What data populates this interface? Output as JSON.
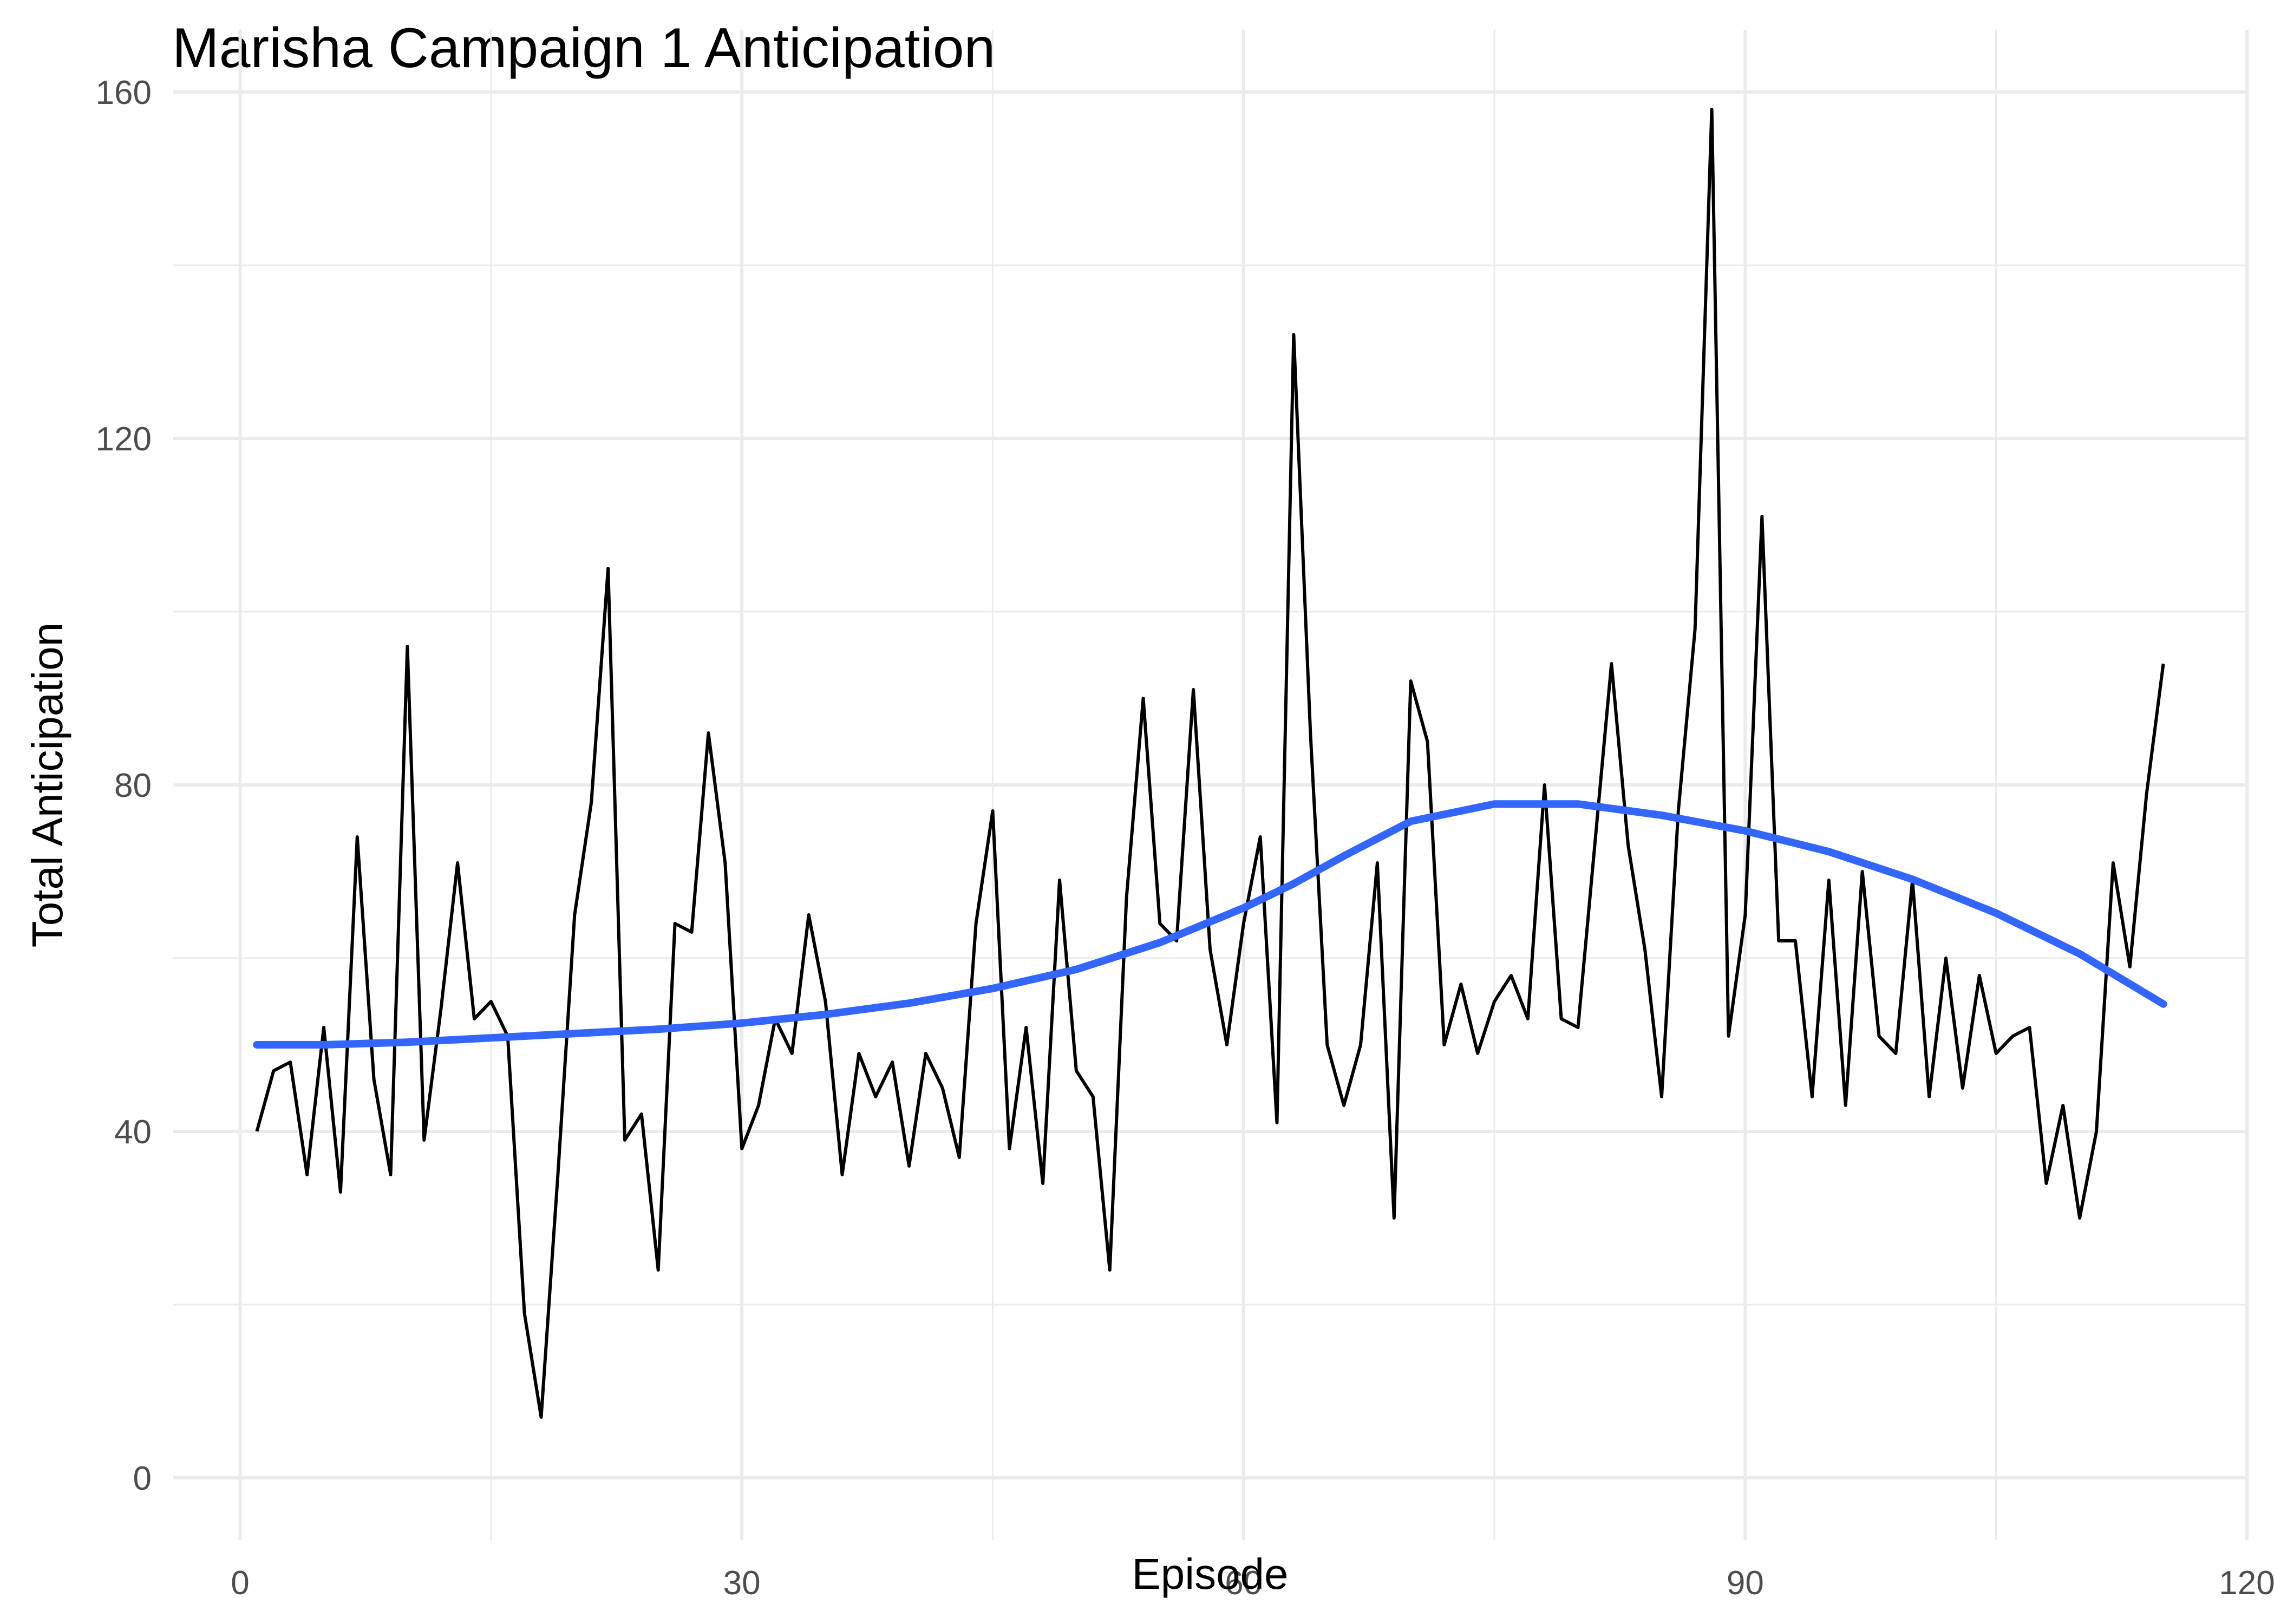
{
  "chart_data": {
    "type": "line",
    "title": "Marisha Campaign 1 Anticipation",
    "xlabel": "Episode",
    "ylabel": "Total Anticipation",
    "xlim": [
      -4,
      120
    ],
    "ylim": [
      0,
      160
    ],
    "x_ticks": [
      0,
      30,
      60,
      90,
      120
    ],
    "y_ticks": [
      0,
      40,
      80,
      120,
      160
    ],
    "x_minor": [
      15,
      45,
      75,
      105
    ],
    "y_minor": [
      20,
      60,
      100,
      140
    ],
    "grid": true,
    "legend": "none",
    "colors": {
      "raw": "#000000",
      "smooth": "#3366FF",
      "grid": "#EBEBEB",
      "tick_text": "#4D4D4D"
    },
    "series": [
      {
        "x": [
          1,
          2,
          3,
          4,
          5,
          6,
          7,
          8,
          9,
          10,
          11,
          12,
          13,
          14,
          15,
          16,
          17,
          18,
          19,
          20,
          21,
          22,
          23,
          24,
          25,
          26,
          27,
          28,
          29,
          30,
          31,
          32,
          33,
          34,
          35,
          36,
          37,
          38,
          39,
          40,
          41,
          42,
          43,
          44,
          45,
          46,
          47,
          48,
          49,
          50,
          51,
          52,
          53,
          54,
          55,
          56,
          57,
          58,
          59,
          60,
          61,
          62,
          63,
          64,
          65,
          66,
          67,
          68,
          69,
          70,
          71,
          72,
          73,
          74,
          75,
          76,
          77,
          78,
          79,
          80,
          81,
          82,
          83,
          84,
          85,
          86,
          87,
          88,
          89,
          90,
          91,
          92,
          93,
          94,
          95,
          96,
          97,
          98,
          99,
          100,
          101,
          102,
          103,
          104,
          105,
          106,
          107,
          108,
          109,
          110,
          111,
          112,
          113,
          114,
          115
        ],
        "values": [
          40,
          47,
          48,
          35,
          52,
          33,
          74,
          46,
          35,
          96,
          39,
          54,
          71,
          53,
          55,
          51,
          19,
          7,
          35,
          65,
          78,
          105,
          39,
          42,
          24,
          64,
          63,
          86,
          71,
          38,
          43,
          53,
          49,
          65,
          55,
          35,
          49,
          44,
          48,
          36,
          49,
          45,
          37,
          64,
          77,
          38,
          52,
          34,
          69,
          47,
          44,
          24,
          67,
          90,
          64,
          62,
          91,
          61,
          50,
          64,
          74,
          41,
          132,
          86,
          50,
          43,
          50,
          71,
          30,
          92,
          85,
          50,
          57,
          49,
          55,
          58,
          53,
          80,
          53,
          52,
          73,
          94,
          73,
          61,
          44,
          77,
          98,
          158,
          51,
          65,
          111,
          62,
          62,
          44,
          69,
          43,
          70,
          51,
          49,
          69,
          44,
          60,
          45,
          58,
          49,
          51,
          52,
          34,
          43,
          30,
          40,
          71,
          59,
          79,
          94
        ]
      },
      {
        "x": [
          1,
          5,
          10,
          15,
          20,
          25,
          30,
          35,
          40,
          45,
          50,
          55,
          60,
          63,
          66,
          70,
          75,
          80,
          85,
          90,
          95,
          100,
          105,
          110,
          115
        ],
        "values": [
          50,
          50,
          50.3,
          50.8,
          51.3,
          51.8,
          52.5,
          53.5,
          54.8,
          56.5,
          58.7,
          61.8,
          65.8,
          68.6,
          71.8,
          75.8,
          77.8,
          77.8,
          76.5,
          74.7,
          72.3,
          69.1,
          65.2,
          60.5,
          54.7
        ]
      }
    ]
  }
}
